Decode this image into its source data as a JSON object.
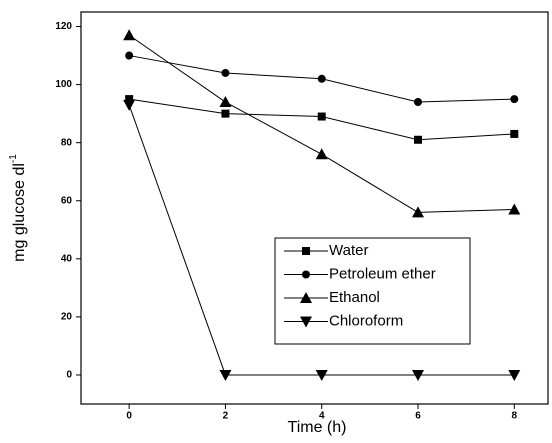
{
  "chart_data": {
    "type": "line",
    "x_label": "Time (h)",
    "y_label": "mg glucose dl",
    "y_label_superscript": "-1",
    "x": [
      0,
      2,
      4,
      6,
      8
    ],
    "xlim": [
      -1,
      8.7
    ],
    "xticks": [
      0,
      2,
      4,
      6,
      8
    ],
    "ylim": [
      -10,
      125
    ],
    "yticks": [
      0,
      20,
      40,
      60,
      80,
      100,
      120
    ],
    "legend": "right",
    "series": [
      {
        "name": "Water",
        "color": "#000000",
        "marker": "square",
        "values": [
          95,
          90,
          89,
          81,
          83
        ]
      },
      {
        "name": "Petroleum ether",
        "color": "#000000",
        "marker": "circle",
        "values": [
          110,
          104,
          102,
          94,
          95
        ]
      },
      {
        "name": "Ethanol",
        "color": "#000000",
        "marker": "triangle-up",
        "values": [
          117,
          94,
          76,
          56,
          57
        ]
      },
      {
        "name": "Chloroform",
        "color": "#000000",
        "marker": "triangle-down",
        "values": [
          93,
          0,
          0,
          0,
          0
        ]
      }
    ]
  }
}
